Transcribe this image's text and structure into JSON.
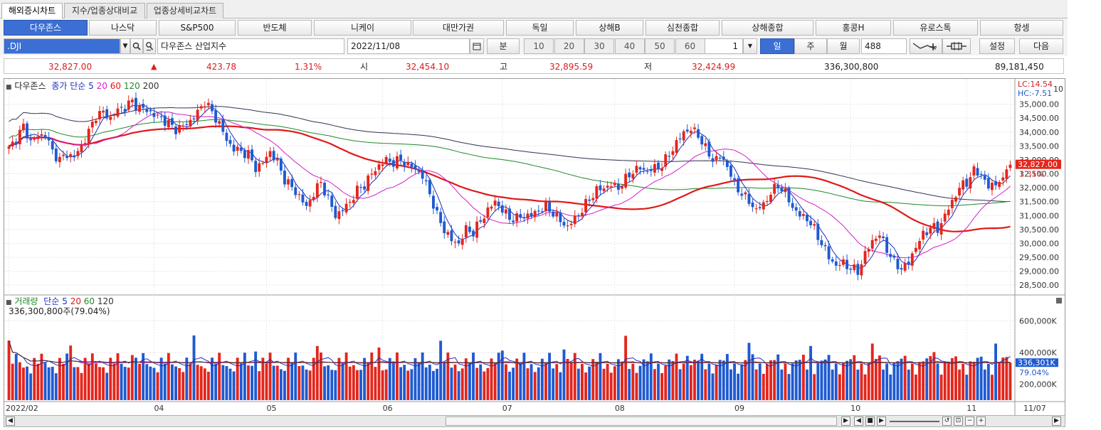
{
  "tabs": [
    "해외증시차트",
    "지수/업종상대비교",
    "업종상세비교차트"
  ],
  "indices": [
    "다우존스",
    "나스닥",
    "S&P500",
    "반도체",
    "니케이",
    "대만가권",
    "독일",
    "상해B",
    "심천종합",
    "상해종합",
    "홍콩H",
    "유로스톡",
    "항셍"
  ],
  "controls": {
    "symbol": ".DJI",
    "symbol_name": "다우존스 산업지수",
    "date": "2022/11/08",
    "interval_label": "분",
    "minute_options": [
      "10",
      "20",
      "30",
      "40",
      "50",
      "60"
    ],
    "count_value": "1",
    "periods": [
      "일",
      "주",
      "월"
    ],
    "bars": "488",
    "settings_label": "설정",
    "next_label": "다음"
  },
  "quote": {
    "price": "32,827.00",
    "change": "423.78",
    "change_pct": "1.31%",
    "open_label": "시",
    "open": "32,454.10",
    "high_label": "고",
    "high": "32,895.59",
    "low_label": "저",
    "low": "32,424.99",
    "volume": "336,300,800",
    "amount": "89,181,450"
  },
  "colors": {
    "up": "#e3261d",
    "down": "#1f5ad1",
    "ma5": "#1d2fbf",
    "ma20": "#d21fc8",
    "ma60": "#e01818",
    "ma120": "#1e8a2a",
    "ma200": "#333355",
    "active_button": "#3c6fd4"
  },
  "chart_data": [
    {
      "type": "candlestick",
      "legend": {
        "name": "다우존스",
        "ma_label": "종가 단순",
        "periods": [
          "5",
          "20",
          "60",
          "120",
          "200"
        ]
      },
      "ylim": [
        28300,
        35500
      ],
      "y_ticks": [
        "35,000.00",
        "34,500.00",
        "34,000.00",
        "33,500.00",
        "33,000.00",
        "32,500.00",
        "32,000.00",
        "31,500.00",
        "31,000.00",
        "30,500.00",
        "30,000.00",
        "29,500.00",
        "29,000.00",
        "28,500.00"
      ],
      "y_tick_values": [
        35000,
        34500,
        34000,
        33500,
        33000,
        32500,
        32000,
        31500,
        31000,
        30500,
        30000,
        29500,
        29000,
        28500
      ],
      "last_price_label": "32,827.00",
      "last_pct_label": "1.31%",
      "lc_label": "LC:14.54",
      "hc_label": "HC:-7.51",
      "top_tick": "10",
      "key_closes": [
        [
          0,
          33400
        ],
        [
          2,
          33750
        ],
        [
          4,
          34200
        ],
        [
          6,
          33650
        ],
        [
          8,
          33850
        ],
        [
          10,
          33900
        ],
        [
          12,
          33300
        ],
        [
          14,
          33000
        ],
        [
          16,
          33200
        ],
        [
          18,
          33100
        ],
        [
          20,
          33500
        ],
        [
          22,
          34000
        ],
        [
          24,
          34600
        ],
        [
          26,
          34700
        ],
        [
          28,
          34500
        ],
        [
          30,
          34800
        ],
        [
          32,
          34900
        ],
        [
          34,
          35100
        ],
        [
          36,
          34850
        ],
        [
          38,
          34800
        ],
        [
          40,
          34600
        ],
        [
          42,
          34500
        ],
        [
          44,
          34300
        ],
        [
          46,
          34100
        ],
        [
          48,
          34200
        ],
        [
          50,
          34400
        ],
        [
          52,
          34700
        ],
        [
          54,
          35100
        ],
        [
          56,
          34700
        ],
        [
          58,
          34300
        ],
        [
          60,
          33700
        ],
        [
          62,
          33400
        ],
        [
          64,
          33300
        ],
        [
          66,
          33200
        ],
        [
          68,
          32700
        ],
        [
          70,
          32900
        ],
        [
          72,
          33300
        ],
        [
          74,
          32900
        ],
        [
          76,
          32300
        ],
        [
          78,
          32000
        ],
        [
          80,
          31700
        ],
        [
          82,
          31300
        ],
        [
          84,
          31800
        ],
        [
          86,
          32200
        ],
        [
          88,
          31600
        ],
        [
          90,
          31000
        ],
        [
          92,
          31200
        ],
        [
          94,
          31500
        ],
        [
          96,
          31900
        ],
        [
          98,
          32100
        ],
        [
          100,
          32500
        ],
        [
          102,
          32800
        ],
        [
          104,
          33000
        ],
        [
          106,
          32900
        ],
        [
          108,
          33000
        ],
        [
          110,
          32800
        ],
        [
          112,
          32700
        ],
        [
          114,
          32400
        ],
        [
          116,
          31800
        ],
        [
          118,
          31000
        ],
        [
          120,
          30500
        ],
        [
          122,
          30100
        ],
        [
          124,
          30000
        ],
        [
          126,
          30500
        ],
        [
          128,
          30400
        ],
        [
          130,
          30800
        ],
        [
          132,
          31200
        ],
        [
          134,
          31500
        ],
        [
          136,
          31200
        ],
        [
          138,
          30900
        ],
        [
          140,
          30900
        ],
        [
          142,
          31000
        ],
        [
          144,
          31000
        ],
        [
          146,
          31200
        ],
        [
          148,
          31300
        ],
        [
          150,
          31100
        ],
        [
          152,
          30800
        ],
        [
          154,
          30600
        ],
        [
          156,
          30900
        ],
        [
          158,
          31200
        ],
        [
          160,
          31600
        ],
        [
          162,
          31900
        ],
        [
          164,
          32000
        ],
        [
          166,
          32100
        ],
        [
          168,
          32000
        ],
        [
          170,
          32300
        ],
        [
          172,
          32600
        ],
        [
          174,
          32700
        ],
        [
          176,
          32600
        ],
        [
          178,
          32700
        ],
        [
          180,
          32800
        ],
        [
          182,
          33200
        ],
        [
          184,
          33600
        ],
        [
          186,
          34000
        ],
        [
          188,
          34100
        ],
        [
          190,
          33900
        ],
        [
          192,
          33400
        ],
        [
          194,
          33000
        ],
        [
          196,
          33100
        ],
        [
          198,
          32800
        ],
        [
          200,
          32100
        ],
        [
          202,
          31800
        ],
        [
          204,
          31500
        ],
        [
          206,
          31200
        ],
        [
          208,
          31400
        ],
        [
          210,
          31800
        ],
        [
          212,
          32100
        ],
        [
          214,
          31800
        ],
        [
          216,
          31300
        ],
        [
          218,
          31000
        ],
        [
          220,
          30900
        ],
        [
          222,
          30500
        ],
        [
          224,
          30000
        ],
        [
          226,
          29500
        ],
        [
          228,
          29200
        ],
        [
          230,
          29300
        ],
        [
          232,
          29100
        ],
        [
          234,
          29000
        ],
        [
          236,
          29600
        ],
        [
          238,
          30100
        ],
        [
          240,
          30300
        ],
        [
          242,
          29800
        ],
        [
          244,
          29300
        ],
        [
          246,
          29100
        ],
        [
          248,
          29300
        ],
        [
          250,
          29900
        ],
        [
          252,
          30300
        ],
        [
          254,
          30600
        ],
        [
          256,
          30500
        ],
        [
          258,
          31000
        ],
        [
          260,
          31500
        ],
        [
          262,
          32000
        ],
        [
          264,
          32200
        ],
        [
          266,
          32600
        ],
        [
          268,
          32500
        ],
        [
          270,
          32000
        ],
        [
          272,
          32200
        ],
        [
          274,
          32200
        ],
        [
          275,
          32827
        ]
      ]
    },
    {
      "type": "bar",
      "legend": {
        "name": "거래량",
        "ma_label": "단순",
        "periods": [
          "5",
          "20",
          "60",
          "120"
        ]
      },
      "current_label": "336,300,800주(79.04%)",
      "ylim": [
        100000,
        700000
      ],
      "y_ticks": [
        "600,000K",
        "400,000K",
        "200,000K"
      ],
      "y_tick_values": [
        600000,
        400000,
        200000
      ],
      "last_value_label": "336,301K",
      "last_pct_label": "79.04%",
      "last_value": 336301
    }
  ],
  "x_axis": {
    "labels": [
      "2022/02",
      "04",
      "05",
      "06",
      "07",
      "08",
      "09",
      "10",
      "11",
      "11/07"
    ],
    "label_index": [
      0,
      40,
      71,
      103,
      136,
      167,
      200,
      232,
      264,
      276
    ]
  }
}
